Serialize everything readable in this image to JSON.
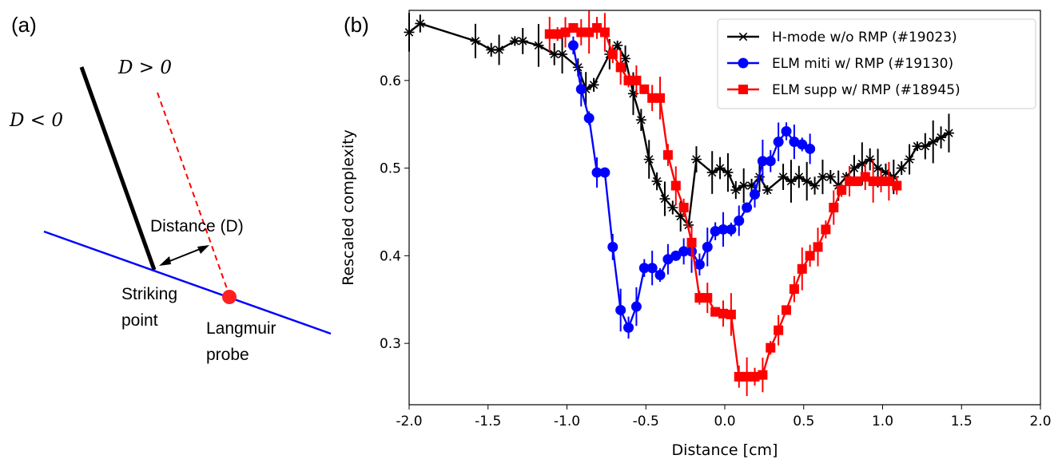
{
  "panel_a": {
    "label": "(a)",
    "text_d_gt": "D > 0",
    "text_d_lt": "D < 0",
    "text_distance": "Distance (D)",
    "text_striking_1": "Striking",
    "text_striking_2": "point",
    "text_langmuir_1": "Langmuir",
    "text_langmuir_2": "probe"
  },
  "panel_b": {
    "label": "(b)"
  },
  "chart_data": {
    "type": "line",
    "xlabel": "Distance [cm]",
    "ylabel": "Rescaled complexity",
    "xlim": [
      -2.0,
      2.0
    ],
    "ylim": [
      0.23,
      0.68
    ],
    "xticks": [
      "-2.0",
      "-1.5",
      "-1.0",
      "-0.5",
      "0.0",
      "0.5",
      "1.0",
      "1.5",
      "2.0"
    ],
    "yticks": [
      "0.3",
      "0.4",
      "0.5",
      "0.6"
    ],
    "legend_position": "top-right",
    "series": [
      {
        "name": "H-mode w/o RMP (#19023)",
        "color": "#000000",
        "marker": "star",
        "points": [
          [
            -2.0,
            0.655
          ],
          [
            -1.93,
            0.665
          ],
          [
            -1.58,
            0.645
          ],
          [
            -1.48,
            0.635
          ],
          [
            -1.43,
            0.635
          ],
          [
            -1.33,
            0.645
          ],
          [
            -1.28,
            0.645
          ],
          [
            -1.18,
            0.64
          ],
          [
            -1.08,
            0.63
          ],
          [
            -1.03,
            0.63
          ],
          [
            -0.93,
            0.615
          ],
          [
            -0.88,
            0.59
          ],
          [
            -0.83,
            0.595
          ],
          [
            -0.73,
            0.63
          ],
          [
            -0.68,
            0.64
          ],
          [
            -0.63,
            0.625
          ],
          [
            -0.58,
            0.585
          ],
          [
            -0.53,
            0.555
          ],
          [
            -0.48,
            0.51
          ],
          [
            -0.43,
            0.485
          ],
          [
            -0.38,
            0.465
          ],
          [
            -0.33,
            0.455
          ],
          [
            -0.28,
            0.445
          ],
          [
            -0.23,
            0.435
          ],
          [
            -0.18,
            0.51
          ],
          [
            -0.08,
            0.495
          ],
          [
            -0.03,
            0.5
          ],
          [
            0.02,
            0.495
          ],
          [
            0.07,
            0.475
          ],
          [
            0.12,
            0.48
          ],
          [
            0.17,
            0.48
          ],
          [
            0.22,
            0.49
          ],
          [
            0.27,
            0.475
          ],
          [
            0.37,
            0.49
          ],
          [
            0.42,
            0.485
          ],
          [
            0.47,
            0.49
          ],
          [
            0.52,
            0.485
          ],
          [
            0.57,
            0.48
          ],
          [
            0.62,
            0.49
          ],
          [
            0.67,
            0.49
          ],
          [
            0.72,
            0.48
          ],
          [
            0.77,
            0.49
          ],
          [
            0.82,
            0.5
          ],
          [
            0.87,
            0.505
          ],
          [
            0.92,
            0.51
          ],
          [
            0.97,
            0.5
          ],
          [
            1.02,
            0.495
          ],
          [
            1.07,
            0.49
          ],
          [
            1.12,
            0.5
          ],
          [
            1.17,
            0.51
          ],
          [
            1.22,
            0.525
          ],
          [
            1.27,
            0.525
          ],
          [
            1.32,
            0.53
          ],
          [
            1.37,
            0.535
          ],
          [
            1.42,
            0.54
          ]
        ]
      },
      {
        "name": "ELM miti w/ RMP (#19130)",
        "color": "#0000ff",
        "marker": "circle",
        "points": [
          [
            -0.96,
            0.64
          ],
          [
            -0.91,
            0.59
          ],
          [
            -0.86,
            0.557
          ],
          [
            -0.81,
            0.495
          ],
          [
            -0.76,
            0.495
          ],
          [
            -0.71,
            0.41
          ],
          [
            -0.66,
            0.338
          ],
          [
            -0.61,
            0.318
          ],
          [
            -0.56,
            0.342
          ],
          [
            -0.51,
            0.386
          ],
          [
            -0.46,
            0.386
          ],
          [
            -0.41,
            0.378
          ],
          [
            -0.36,
            0.396
          ],
          [
            -0.31,
            0.4
          ],
          [
            -0.26,
            0.405
          ],
          [
            -0.21,
            0.405
          ],
          [
            -0.16,
            0.39
          ],
          [
            -0.11,
            0.41
          ],
          [
            -0.06,
            0.428
          ],
          [
            -0.01,
            0.43
          ],
          [
            0.04,
            0.43
          ],
          [
            0.09,
            0.44
          ],
          [
            0.14,
            0.455
          ],
          [
            0.19,
            0.47
          ],
          [
            0.24,
            0.508
          ],
          [
            0.29,
            0.508
          ],
          [
            0.34,
            0.53
          ],
          [
            0.39,
            0.542
          ],
          [
            0.44,
            0.53
          ],
          [
            0.49,
            0.527
          ],
          [
            0.54,
            0.522
          ]
        ]
      },
      {
        "name": "ELM supp w/ RMP (#18945)",
        "color": "#ff0000",
        "marker": "square",
        "points": [
          [
            -1.11,
            0.653
          ],
          [
            -1.06,
            0.653
          ],
          [
            -1.01,
            0.655
          ],
          [
            -0.96,
            0.66
          ],
          [
            -0.91,
            0.655
          ],
          [
            -0.86,
            0.655
          ],
          [
            -0.81,
            0.66
          ],
          [
            -0.76,
            0.655
          ],
          [
            -0.71,
            0.63
          ],
          [
            -0.66,
            0.615
          ],
          [
            -0.61,
            0.6
          ],
          [
            -0.56,
            0.6
          ],
          [
            -0.51,
            0.59
          ],
          [
            -0.46,
            0.58
          ],
          [
            -0.41,
            0.58
          ],
          [
            -0.36,
            0.515
          ],
          [
            -0.31,
            0.48
          ],
          [
            -0.26,
            0.455
          ],
          [
            -0.21,
            0.415
          ],
          [
            -0.16,
            0.352
          ],
          [
            -0.11,
            0.352
          ],
          [
            -0.06,
            0.336
          ],
          [
            -0.01,
            0.334
          ],
          [
            0.04,
            0.333
          ],
          [
            0.09,
            0.262
          ],
          [
            0.14,
            0.262
          ],
          [
            0.19,
            0.262
          ],
          [
            0.24,
            0.264
          ],
          [
            0.29,
            0.295
          ],
          [
            0.34,
            0.315
          ],
          [
            0.39,
            0.338
          ],
          [
            0.44,
            0.362
          ],
          [
            0.49,
            0.385
          ],
          [
            0.54,
            0.4
          ],
          [
            0.59,
            0.41
          ],
          [
            0.64,
            0.43
          ],
          [
            0.69,
            0.455
          ],
          [
            0.74,
            0.475
          ],
          [
            0.79,
            0.485
          ],
          [
            0.84,
            0.485
          ],
          [
            0.89,
            0.49
          ],
          [
            0.94,
            0.485
          ],
          [
            0.99,
            0.485
          ],
          [
            1.04,
            0.485
          ],
          [
            1.09,
            0.48
          ]
        ]
      }
    ]
  }
}
